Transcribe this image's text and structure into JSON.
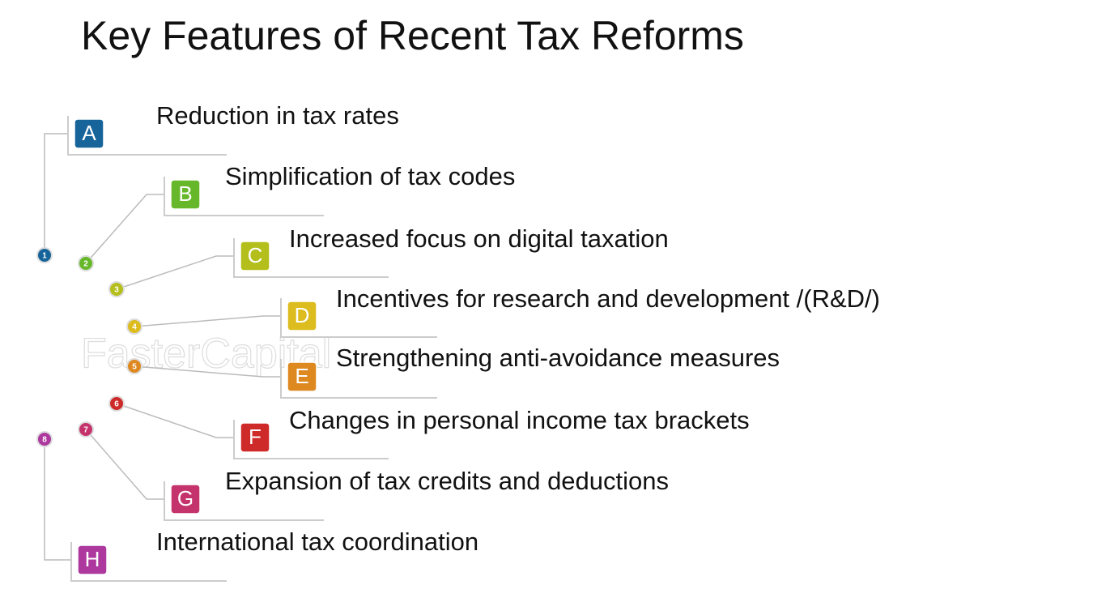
{
  "title": "Key Features of Recent Tax Reforms",
  "watermark": "FasterCapital",
  "items": [
    {
      "number": "1",
      "letter": "A",
      "label": "Reduction in tax rates"
    },
    {
      "number": "2",
      "letter": "B",
      "label": "Simplification of tax codes"
    },
    {
      "number": "3",
      "letter": "C",
      "label": "Increased focus on digital taxation"
    },
    {
      "number": "4",
      "letter": "D",
      "label": "Incentives for research and development /(R&D/)"
    },
    {
      "number": "5",
      "letter": "E",
      "label": "Strengthening anti-avoidance measures"
    },
    {
      "number": "6",
      "letter": "F",
      "label": "Changes in personal income tax brackets"
    },
    {
      "number": "7",
      "letter": "G",
      "label": "Expansion of tax credits and deductions"
    },
    {
      "number": "8",
      "letter": "H",
      "label": "International tax coordination"
    }
  ]
}
